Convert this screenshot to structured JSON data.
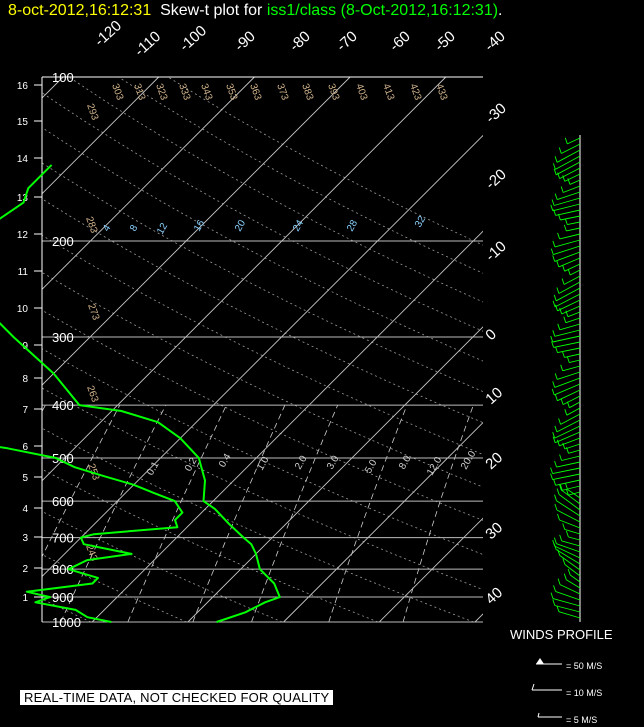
{
  "header": {
    "date": "8-oct-2012,16:12:31",
    "mid": "  Skew-t plot for ",
    "station": "iss1/class",
    "info": " (8-Oct-2012,16:12:31)",
    "end": "."
  },
  "chart_data": {
    "type": "line",
    "pressure_ticks": [
      100,
      200,
      300,
      400,
      500,
      600,
      700,
      800,
      900,
      1000
    ],
    "height_ticks": [
      "1",
      "2",
      "3",
      "4",
      "5",
      "6",
      "7",
      "8",
      "9",
      "10",
      "11",
      "12",
      "13",
      "14",
      "15",
      "16"
    ],
    "isotherm_labels": [
      "-120",
      "-110",
      "-100",
      "-90",
      "-80",
      "-70",
      "-60",
      "-50",
      "-40",
      "-30",
      "-20",
      "-10",
      "0",
      "10",
      "20",
      "30",
      "40"
    ],
    "dry_adiabat_top_labels": [
      "303",
      "313",
      "323",
      "333",
      "343",
      "353",
      "363",
      "373",
      "383",
      "393",
      "403",
      "413",
      "423",
      "433"
    ],
    "dry_adiabat_left_labels": [
      "293",
      "283",
      "273",
      "263",
      "253",
      "243"
    ],
    "mixing_ratio_upper_labels": [
      "4",
      "8",
      "12",
      "16",
      "20",
      "24",
      "28",
      "32"
    ],
    "mixing_ratio_lower_labels": [
      "0.1",
      "0.2",
      "0.4",
      "1.0",
      "2.0",
      "3.0",
      "5.0",
      "8.0",
      "12.0",
      "20.0"
    ],
    "series": [
      {
        "color": "#00ff00",
        "points": [
          [
            1000,
            13
          ],
          [
            960,
            15
          ],
          [
            920,
            16
          ],
          [
            900,
            17
          ],
          [
            850,
            15
          ],
          [
            800,
            12
          ],
          [
            750,
            10
          ],
          [
            720,
            8.5
          ],
          [
            700,
            7
          ],
          [
            660,
            4
          ],
          [
            620,
            1
          ],
          [
            600,
            -1
          ],
          [
            550,
            -3
          ],
          [
            500,
            -6
          ],
          [
            460,
            -10
          ],
          [
            430,
            -14
          ],
          [
            410,
            -19
          ],
          [
            400,
            -24
          ],
          [
            350,
            -30
          ],
          [
            300,
            -38
          ],
          [
            250,
            -47
          ],
          [
            220,
            -51
          ],
          [
            200,
            -52
          ],
          [
            185,
            -52
          ],
          [
            170,
            -51
          ],
          [
            160,
            -52
          ],
          [
            145,
            -52
          ]
        ]
      },
      {
        "color": "#00ff00",
        "points": [
          [
            1000,
            2
          ],
          [
            980,
            -1
          ],
          [
            950,
            -3
          ],
          [
            920,
            -8
          ],
          [
            900,
            -7
          ],
          [
            880,
            -10
          ],
          [
            850,
            -4
          ],
          [
            830,
            -4
          ],
          [
            800,
            -8
          ],
          [
            770,
            -7
          ],
          [
            750,
            -3
          ],
          [
            720,
            -9
          ],
          [
            700,
            -10
          ],
          [
            690,
            -9
          ],
          [
            670,
            -1
          ],
          [
            650,
            -2
          ],
          [
            630,
            -2
          ],
          [
            600,
            -4
          ],
          [
            580,
            -7
          ],
          [
            560,
            -10
          ],
          [
            540,
            -14
          ],
          [
            520,
            -18
          ],
          [
            500,
            -21
          ],
          [
            480,
            -27
          ],
          [
            460,
            -35
          ],
          [
            440,
            -42
          ],
          [
            420,
            -48
          ],
          [
            400,
            -52
          ],
          [
            395,
            -54
          ],
          [
            390,
            -54
          ],
          [
            380,
            -51
          ],
          [
            360,
            -53
          ],
          [
            330,
            -54
          ],
          [
            300,
            -57
          ],
          [
            280,
            -59
          ],
          [
            250,
            -64
          ],
          [
            230,
            -66
          ],
          [
            200,
            -72
          ],
          [
            185,
            -73
          ],
          [
            175,
            -71
          ],
          [
            170,
            -72
          ],
          [
            160,
            -71
          ],
          [
            150,
            -72
          ],
          [
            140,
            -71
          ]
        ]
      }
    ]
  },
  "winds_profile": {
    "title": "WINDS PROFILE",
    "legend": [
      "= 50 M/S",
      "= 10 M/S",
      "= 5 M/S"
    ]
  },
  "banner": "REAL-TIME DATA, NOT CHECKED FOR QUALITY"
}
